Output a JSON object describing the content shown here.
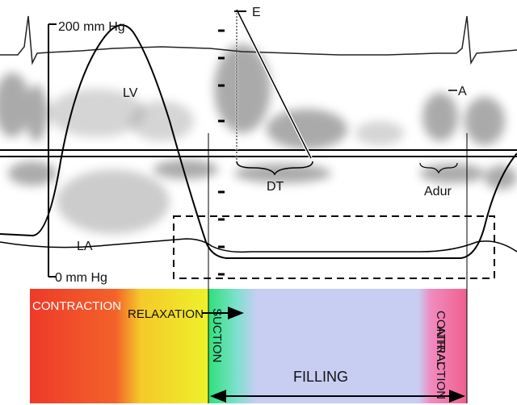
{
  "pressure_scale": {
    "top": "200 mm Hg",
    "bottom": "0 mm Hg"
  },
  "waves": {
    "e": "E",
    "lv": "LV",
    "a": "A",
    "dt": "DT",
    "adur": "Adur",
    "la": "LA"
  },
  "phases": {
    "contraction": "CONTRACTION",
    "relaxation": "RELAXATION",
    "suction": "SUCTION",
    "filling": "FILLING",
    "atrial_contraction": [
      "ATRIAL",
      "CONTRACTION"
    ]
  }
}
